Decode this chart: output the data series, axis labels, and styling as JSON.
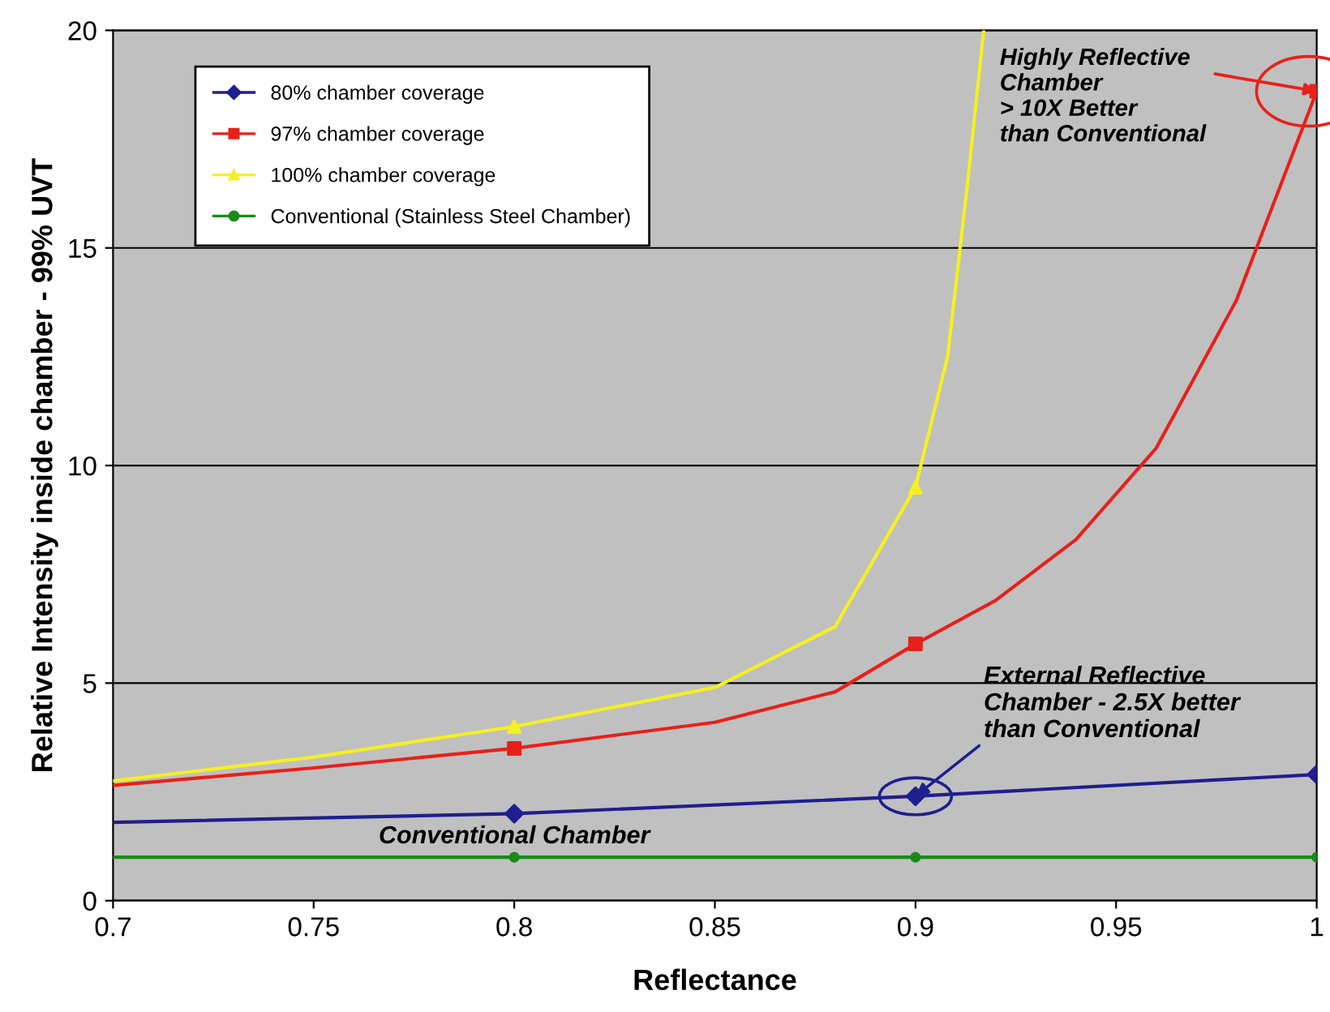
{
  "chart_data": {
    "type": "line",
    "xlabel": "Reflectance",
    "ylabel": "Relative Intensity inside chamber - 99% UVT",
    "xlim": [
      0.7,
      1.0
    ],
    "ylim": [
      0,
      20
    ],
    "xticks": [
      0.7,
      0.75,
      0.8,
      0.85,
      0.9,
      0.95,
      {
        "value": 1.0,
        "label": "1"
      }
    ],
    "yticks": [
      0,
      5,
      10,
      15,
      20
    ],
    "grid": "y",
    "legend": "top left",
    "series": [
      {
        "name": "80% chamber coverage",
        "color": "#1f1f8f",
        "x": [
          0.7,
          0.8,
          0.9,
          1.0
        ],
        "values": [
          1.8,
          2.0,
          2.4,
          2.9
        ]
      },
      {
        "name": "97% chamber coverage",
        "color": "#e8201a",
        "x": [
          0.7,
          0.75,
          0.8,
          0.85,
          0.88,
          0.9,
          0.92,
          0.94,
          0.96,
          0.98,
          1.0
        ],
        "values": [
          2.65,
          3.05,
          3.5,
          4.1,
          4.8,
          5.9,
          6.9,
          8.3,
          10.4,
          13.8,
          18.6
        ]
      },
      {
        "name": "100% chamber coverage",
        "color": "#f5f020",
        "x": [
          0.7,
          0.75,
          0.8,
          0.85,
          0.88,
          0.9,
          0.908,
          0.913,
          0.917
        ],
        "values": [
          2.75,
          3.3,
          4.0,
          4.9,
          6.3,
          9.5,
          12.5,
          16.5,
          20
        ]
      },
      {
        "name": "Conventional (Stainless Steel Chamber)",
        "color": "#1a8a1a",
        "x": [
          0.7,
          1.0
        ],
        "values": [
          1.0,
          1.0
        ]
      },
      {
        "type": "scatter",
        "color": "#1f1f8f",
        "marker": "diamond",
        "x": [
          0.8,
          0.9,
          1.0
        ],
        "values": [
          2.0,
          2.4,
          2.9
        ]
      },
      {
        "type": "scatter",
        "color": "#e8201a",
        "marker": "square",
        "x": [
          0.8,
          0.9,
          1.0
        ],
        "values": [
          3.5,
          5.9,
          18.6
        ]
      },
      {
        "type": "scatter",
        "color": "#f5f020",
        "marker": "triangle",
        "x": [
          0.8,
          0.9
        ],
        "values": [
          4.0,
          9.5
        ]
      },
      {
        "type": "scatter",
        "color": "#1a8a1a",
        "marker": "circle",
        "x": [
          0.8,
          0.9,
          1.0
        ],
        "values": [
          1.0,
          1.0,
          1.0
        ]
      }
    ],
    "annotations": [
      {
        "text": "Highly Reflective\nChamber\n> 10X Better\nthan Conventional",
        "x": 1.0,
        "y": 18.6
      },
      {
        "text": "External Reflective\nChamber - 2.5X better\nthan Conventional",
        "x": 0.9,
        "y": 2.4
      },
      {
        "text": "Conventional Chamber",
        "x": 0.8,
        "y": 1.0
      }
    ]
  }
}
